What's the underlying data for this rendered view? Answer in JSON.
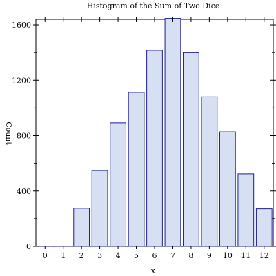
{
  "chart_data": {
    "type": "bar",
    "title": "Histogram of the Sum of Two Dice",
    "xlabel": "x",
    "ylabel": "Count",
    "categories": [
      "0",
      "1",
      "2",
      "3",
      "4",
      "5",
      "6",
      "7",
      "8",
      "9",
      "10",
      "11",
      "12"
    ],
    "values": [
      0,
      0,
      275,
      548,
      893,
      1112,
      1416,
      1647,
      1399,
      1080,
      827,
      524,
      271
    ],
    "ylim": [
      0,
      1640
    ],
    "xlim": [
      -0.5,
      12.5
    ],
    "yticks_major": [
      0,
      400,
      800,
      1200,
      1600
    ],
    "yticks_minor": [
      200,
      600,
      1000,
      1400
    ],
    "grid": false,
    "colors": {
      "bar_fill": "#d6e0f2",
      "bar_stroke": "#1c1c8c",
      "axis": "#000000"
    }
  }
}
